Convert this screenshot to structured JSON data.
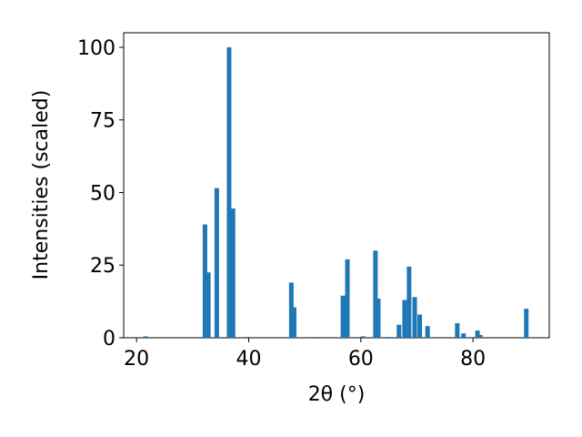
{
  "chart_data": {
    "type": "bar",
    "xlabel": "2θ (°)",
    "ylabel": "Intensities (scaled)",
    "x": [
      21.6,
      32.2,
      32.8,
      34.3,
      36.5,
      37.2,
      39.6,
      47.6,
      48.1,
      51.8,
      56.8,
      57.6,
      60.4,
      62.6,
      63.1,
      64.7,
      66.8,
      67.8,
      68.6,
      69.6,
      70.5,
      71.9,
      77.2,
      78.3,
      80.8,
      81.3,
      89.5
    ],
    "values": [
      0.5,
      39,
      22.5,
      51.5,
      100,
      44.5,
      0.3,
      19,
      10.5,
      0.3,
      14.5,
      27,
      0.5,
      30,
      13.5,
      0.3,
      4.5,
      13,
      24.5,
      14,
      8,
      4,
      5,
      1.5,
      2.5,
      1,
      10
    ],
    "color": "#1f77b4",
    "xlim": [
      17.7,
      93.6
    ],
    "xticks": [
      20,
      40,
      60,
      80
    ],
    "ylim": [
      0,
      105
    ],
    "yticks": [
      0,
      25,
      50,
      75,
      100
    ]
  }
}
